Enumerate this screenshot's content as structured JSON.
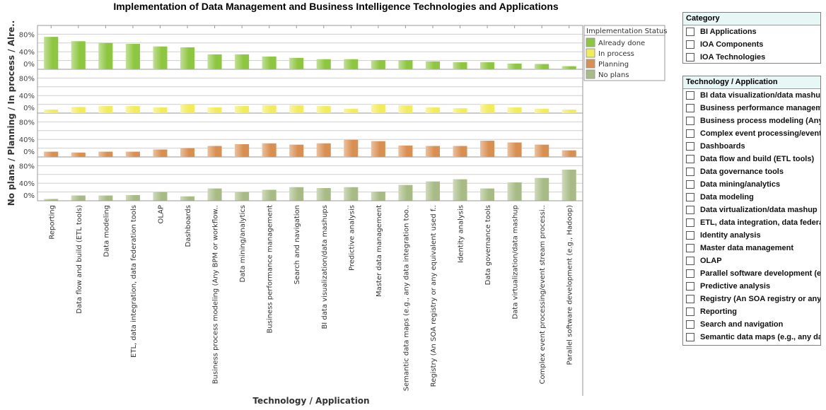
{
  "chart_data": {
    "type": "bar",
    "title": "Implementation of Data Management and Business Intelligence Technologies and Applications",
    "xlabel": "Technology / Application",
    "ylabel": "No plans / Planning / In process / Alre..",
    "ylim": [
      0,
      100
    ],
    "yticks": [
      "80%",
      "40%",
      "0%"
    ],
    "grid": true,
    "layout": "stacked panels, one per series",
    "legend": {
      "title": "Implementation Status",
      "placement": "top-right"
    },
    "categories": [
      "Reporting",
      "Data flow and build (ETL tools)",
      "Data modeling",
      "ETL, data integration, data federation tools",
      "OLAP",
      "Dashboards",
      "Business process modeling (Any BPM or workflow..",
      "Data mining/analytics",
      "Business performance management",
      "Search and navigation",
      "BI data visualization/data mashups",
      "Predictive analysis",
      "Master data management",
      "Semantic data maps (e.g., any data integration too..",
      "Registry (An SOA registry or any equivalent used f..",
      "Identity analysis",
      "Data governance tools",
      "Data virtualization/data mashup",
      "Complex event processing/event stream processi..",
      "Parallel software development (e.g., Hadoop)"
    ],
    "series": [
      {
        "name": "Already  done",
        "color": "#8dc63f",
        "values": [
          74,
          64,
          60,
          58,
          52,
          50,
          34,
          34,
          29,
          26,
          23,
          23,
          21,
          21,
          18,
          16,
          16,
          13,
          12,
          7
        ]
      },
      {
        "name": "In process",
        "color": "#f3ec5a",
        "values": [
          8,
          14,
          16,
          16,
          13,
          21,
          13,
          16,
          18,
          18,
          16,
          10,
          21,
          18,
          13,
          11,
          21,
          13,
          10,
          8
        ]
      },
      {
        "name": "Planning",
        "color": "#d98f50",
        "values": [
          12,
          10,
          12,
          12,
          17,
          20,
          25,
          29,
          31,
          28,
          31,
          39,
          36,
          26,
          25,
          25,
          37,
          33,
          28,
          15
        ]
      },
      {
        "name": "No plans",
        "color": "#a8bb84",
        "values": [
          4,
          12,
          12,
          13,
          20,
          10,
          28,
          20,
          25,
          31,
          29,
          31,
          21,
          36,
          44,
          49,
          28,
          42,
          52,
          71
        ]
      }
    ]
  },
  "filters": {
    "category": {
      "title": "Category",
      "items": [
        "BI Applications",
        "IOA Components",
        "IOA Technologies"
      ]
    },
    "technology": {
      "title": "Technology / Application",
      "items": [
        "BI data visualization/data mashups",
        "Business performance management",
        "Business process modeling (Any BPM or workflow..",
        "Complex event processing/event stream processi..",
        "Dashboards",
        "Data flow and build (ETL tools)",
        "Data governance tools",
        "Data mining/analytics",
        "Data modeling",
        "Data virtualization/data mashup",
        "ETL, data integration, data federation tools",
        "Identity analysis",
        "Master data management",
        "OLAP",
        "Parallel software development (e.g., Hadoop)",
        "Predictive analysis",
        "Registry (An SOA registry or any equivalent used f..",
        "Reporting",
        "Search and navigation",
        "Semantic data maps (e.g., any data integration too.."
      ]
    }
  }
}
